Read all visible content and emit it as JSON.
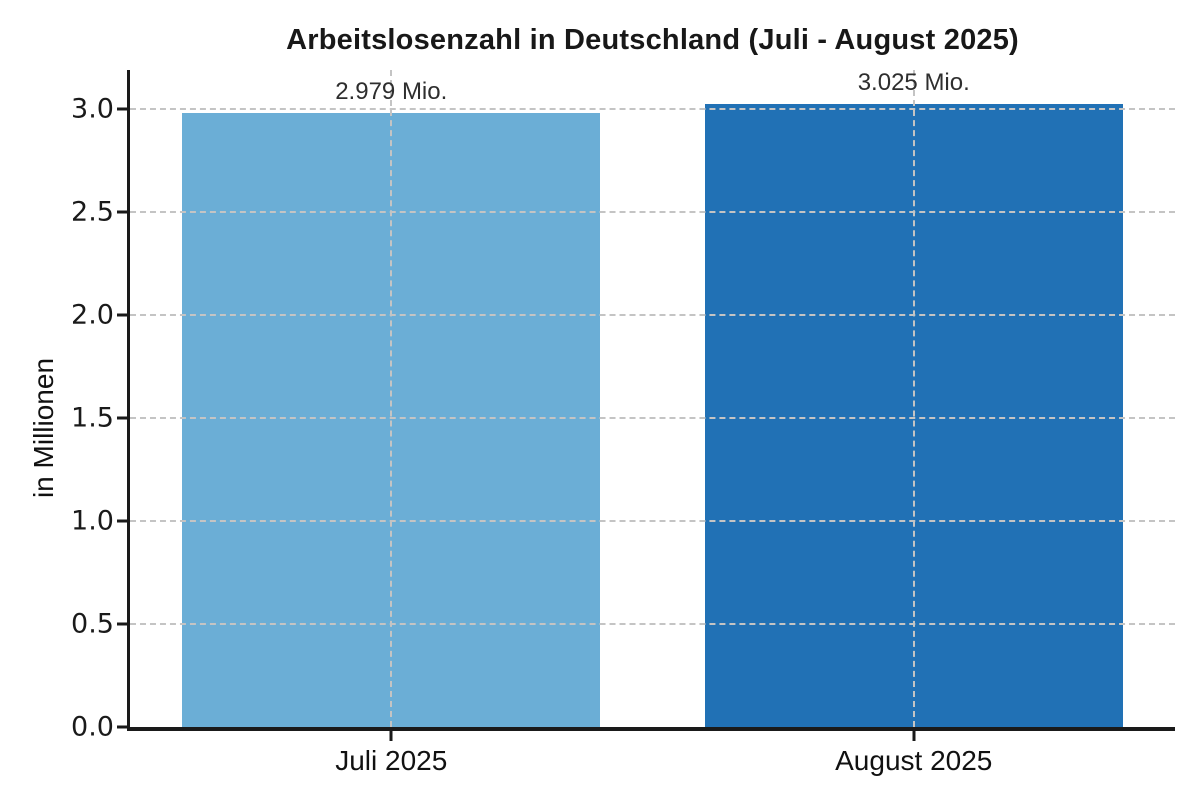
{
  "chart_data": {
    "type": "bar",
    "title": "Arbeitslosenzahl in Deutschland (Juli - August 2025)",
    "xlabel": "",
    "ylabel": "in Millionen",
    "categories": [
      "Juli 2025",
      "August 2025"
    ],
    "values": [
      2.979,
      3.025
    ],
    "bar_labels": [
      "2.979 Mio.",
      "3.025 Mio."
    ],
    "bar_colors": [
      "#6baed6",
      "#2171b5"
    ],
    "yticks": [
      {
        "value": 0.0,
        "label": "0.0"
      },
      {
        "value": 0.5,
        "label": "0.5"
      },
      {
        "value": 1.0,
        "label": "1.0"
      },
      {
        "value": 1.5,
        "label": "1.5"
      },
      {
        "value": 2.0,
        "label": "2.0"
      },
      {
        "value": 2.5,
        "label": "2.5"
      },
      {
        "value": 3.0,
        "label": "3.0"
      }
    ],
    "ylim": [
      0,
      3.19
    ],
    "bar_width_fraction": 0.8,
    "grid": "dashed, drawn above bars, horizontal at y-ticks and vertical at bar centers",
    "grid_color": "#c4c4c4",
    "spine_color": "#1a1a1a",
    "background": "#ffffff",
    "legend": "none"
  }
}
